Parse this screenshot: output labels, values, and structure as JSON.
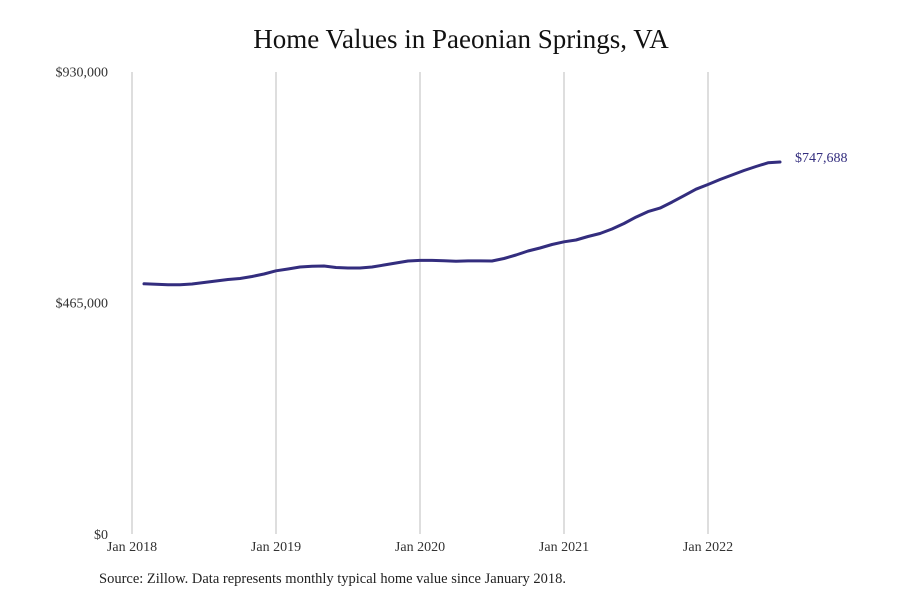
{
  "chart_data": {
    "type": "line",
    "title": "Home Values in Paeonian Springs, VA",
    "xlabel": "",
    "ylabel": "",
    "ylim": [
      0,
      930000
    ],
    "y_ticks": [
      {
        "value": 0,
        "label": "$0"
      },
      {
        "value": 465000,
        "label": "$465,000"
      },
      {
        "value": 930000,
        "label": "$930,000"
      }
    ],
    "x_ticks": [
      "Jan 2018",
      "Jan 2019",
      "Jan 2020",
      "Jan 2021",
      "Jan 2022"
    ],
    "x_start": "Feb 2018",
    "x_end": "Jul 2022",
    "grid": "vertical lines at each January",
    "legend": "none",
    "line_color": "#332d7e",
    "end_label": "$747,688",
    "series": [
      {
        "values": [
          502900,
          502000,
          501000,
          501000,
          502500,
          505500,
          508500,
          511500,
          513500,
          517500,
          522600,
          529000,
          532600,
          536700,
          538000,
          538700,
          535700,
          534700,
          534700,
          536700,
          540700,
          544700,
          548700,
          550000,
          550000,
          549400,
          548300,
          549000,
          548900,
          548700,
          553800,
          560800,
          568800,
          574900,
          581900,
          587300,
          591000,
          598000,
          604000,
          613000,
          624000,
          637000,
          648000,
          655000,
          667000,
          680000,
          693000,
          702500,
          712500,
          721600,
          730600,
          738700,
          746000,
          747688
        ]
      }
    ]
  },
  "footer": {
    "source": "Source: Zillow. Data represents monthly typical home value since January 2018."
  }
}
